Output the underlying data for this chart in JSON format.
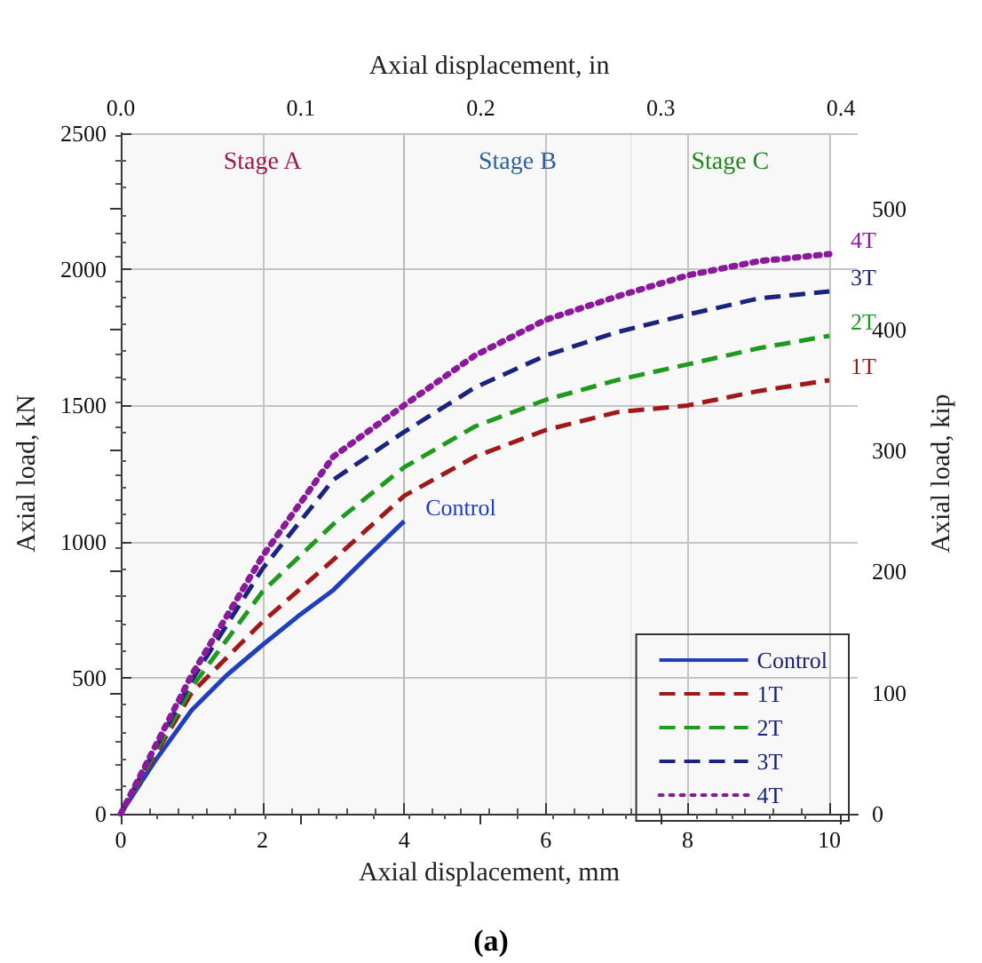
{
  "chart_data": {
    "type": "line",
    "xlabel": "Axial displacement, mm",
    "x2label": "Axial displacement, in",
    "ylabel": "Axial load, kN",
    "y2label": "Axial load, kip",
    "xlim": [
      0,
      10.4
    ],
    "xticks": [
      0,
      2,
      4,
      6,
      8,
      10
    ],
    "x2lim": [
      0,
      0.4094
    ],
    "x2ticks": [
      {
        "value": 0,
        "label": "0.0"
      },
      0.1,
      0.2,
      0.3,
      0.4
    ],
    "ylim": [
      0,
      2500
    ],
    "yticks": [
      0,
      500,
      1000,
      1500,
      2000,
      2500
    ],
    "y2lim": [
      0,
      562
    ],
    "y2ticks": [
      0,
      100,
      200,
      300,
      400,
      500
    ],
    "grid": true,
    "legend": "bottom right",
    "marker": "none",
    "series": [
      {
        "name": "Control",
        "color": "#1f3fbf",
        "line_style": "solid",
        "x": [
          0,
          0.5,
          1,
          1.5,
          2,
          2.5,
          3,
          3.5,
          4
        ],
        "values": [
          0,
          200,
          380,
          510,
          620,
          725,
          822,
          950,
          1075
        ]
      },
      {
        "name": "1T",
        "color": "#a01818",
        "line_style": "dashed",
        "x": [
          0,
          1,
          2,
          3,
          4,
          5,
          6,
          7,
          8,
          9,
          10
        ],
        "values": [
          0,
          444,
          705,
          933,
          1168,
          1312,
          1410,
          1475,
          1500,
          1553,
          1593
        ]
      },
      {
        "name": "2T",
        "color": "#1e9a1e",
        "line_style": "dashed",
        "x": [
          0,
          1,
          2,
          3,
          4,
          5,
          6,
          7,
          8,
          9,
          10
        ],
        "values": [
          0,
          464,
          816,
          1064,
          1273,
          1423,
          1521,
          1593,
          1651,
          1710,
          1756
        ]
      },
      {
        "name": "3T",
        "color": "#1a237e",
        "line_style": "dashed",
        "x": [
          0,
          1,
          2,
          3,
          4,
          5,
          6,
          7,
          8,
          9,
          10
        ],
        "values": [
          0,
          490,
          900,
          1227,
          1403,
          1566,
          1684,
          1769,
          1834,
          1893,
          1919
        ]
      },
      {
        "name": "4T",
        "color": "#8b1a9b",
        "line_style": "dotted",
        "x": [
          0,
          1,
          2,
          3,
          4,
          5,
          6,
          7,
          8,
          9,
          10
        ],
        "values": [
          0,
          509,
          946,
          1312,
          1501,
          1684,
          1815,
          1900,
          1978,
          2030,
          2056
        ]
      }
    ],
    "bands": [
      {
        "axis": "x",
        "from": 0,
        "to": 4,
        "label": "Stage A"
      },
      {
        "axis": "x",
        "from": 4,
        "to": 7.2,
        "label": "Stage B"
      },
      {
        "axis": "x",
        "from": 7.2,
        "to": 10,
        "label": "Stage C"
      }
    ],
    "annotations": [
      "(a)"
    ]
  }
}
